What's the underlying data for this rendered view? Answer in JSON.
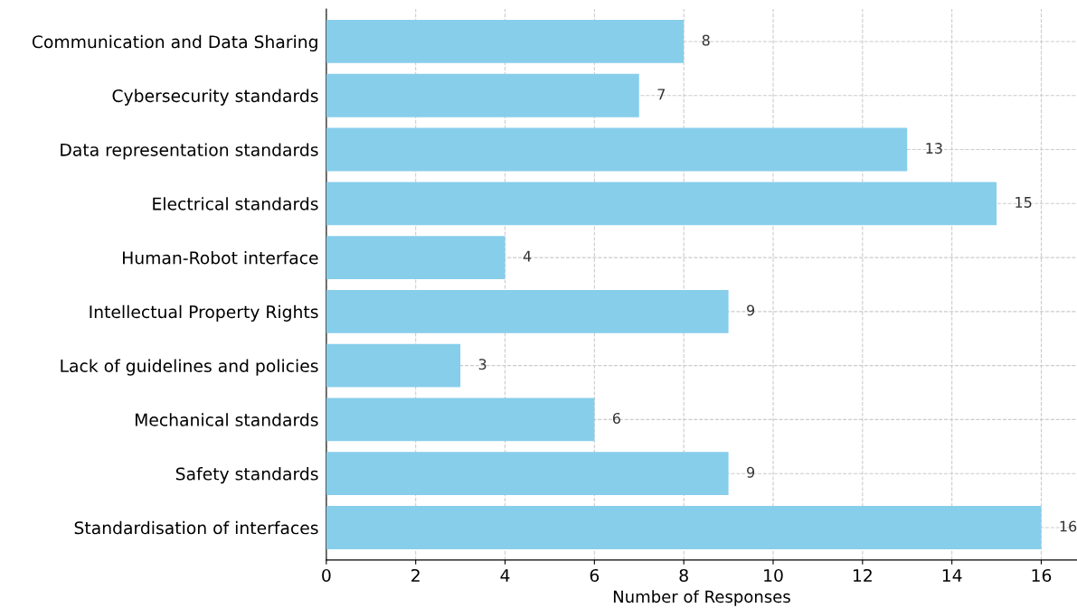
{
  "chart_data": {
    "type": "bar",
    "orientation": "horizontal",
    "xlabel": "Number of Responses",
    "categories": [
      "Communication and Data Sharing",
      "Cybersecurity standards",
      "Data representation standards",
      "Electrical standards",
      "Human-Robot interface",
      "Intellectual Property Rights",
      "Lack of guidelines and policies",
      "Mechanical standards",
      "Safety standards",
      "Standardisation of interfaces"
    ],
    "values": [
      8,
      7,
      13,
      15,
      4,
      9,
      3,
      6,
      9,
      16
    ],
    "color": "#87ceeb",
    "xlim": [
      0,
      16.8
    ],
    "xticks": [
      0,
      2,
      4,
      6,
      8,
      10,
      12,
      14,
      16
    ],
    "grid": true,
    "line_style": "dashed",
    "data_labels": true
  }
}
